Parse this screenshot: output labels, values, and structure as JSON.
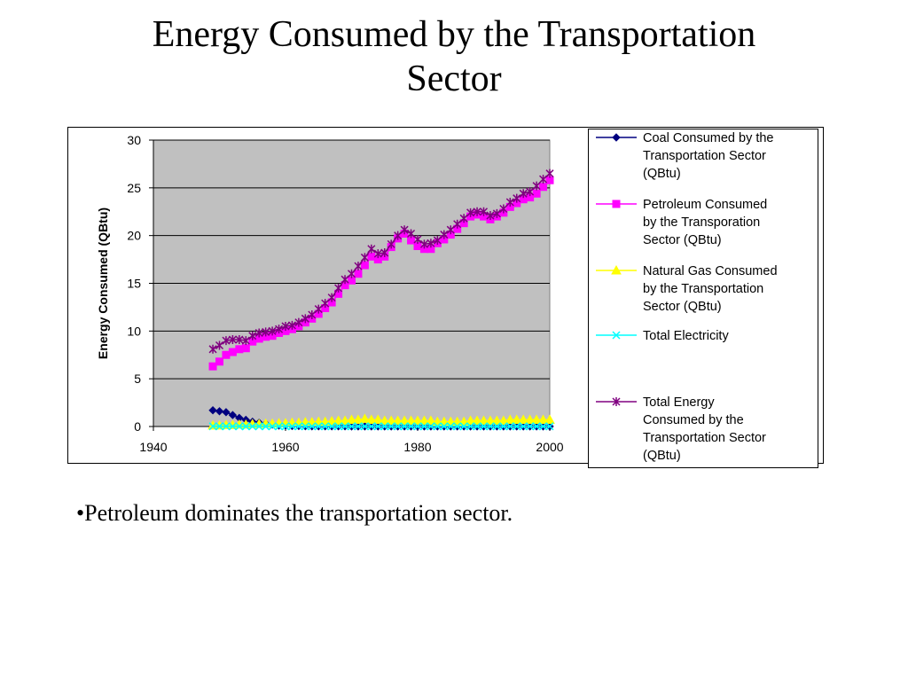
{
  "slide": {
    "title_line1": "Energy Consumed by the Transportation",
    "title_line2": "Sector",
    "bullet": "•Petroleum dominates the transportation sector."
  },
  "chart_data": {
    "type": "line",
    "title": "",
    "xlabel": "",
    "ylabel": "Energy Consumed (QBtu)",
    "xlim": [
      1940,
      2000
    ],
    "ylim": [
      0,
      30
    ],
    "x_ticks": [
      "1940",
      "1960",
      "1980",
      "2000"
    ],
    "y_ticks": [
      "0",
      "5",
      "10",
      "15",
      "20",
      "25",
      "30"
    ],
    "grid": "horizontal",
    "background": "#c0c0c0",
    "legend_position": "right",
    "x": [
      1949,
      1950,
      1951,
      1952,
      1953,
      1954,
      1955,
      1956,
      1957,
      1958,
      1959,
      1960,
      1961,
      1962,
      1963,
      1964,
      1965,
      1966,
      1967,
      1968,
      1969,
      1970,
      1971,
      1972,
      1973,
      1974,
      1975,
      1976,
      1977,
      1978,
      1979,
      1980,
      1981,
      1982,
      1983,
      1984,
      1985,
      1986,
      1987,
      1988,
      1989,
      1990,
      1991,
      1992,
      1993,
      1994,
      1995,
      1996,
      1997,
      1998,
      1999,
      2000
    ],
    "series": [
      {
        "name": "Coal Consumed by the Transportation Sector (QBtu)",
        "legend_lines": [
          "Coal Consumed by the",
          "Transportation Sector",
          "(QBtu)"
        ],
        "color": "#000080",
        "marker": "diamond",
        "values": [
          1.7,
          1.6,
          1.5,
          1.2,
          0.9,
          0.7,
          0.5,
          0.4,
          0.3,
          0.2,
          0.1,
          0.1,
          0.05,
          0.05,
          0.03,
          0.02,
          0.02,
          0.02,
          0.02,
          0.02,
          0.02,
          0.01,
          0.01,
          0.01,
          0.01,
          0.01,
          0.01,
          0.01,
          0.01,
          0.01,
          0.01,
          0.01,
          0.01,
          0.01,
          0.01,
          0.01,
          0.01,
          0.01,
          0.01,
          0.01,
          0.01,
          0.01,
          0.01,
          0.01,
          0.01,
          0.01,
          0.01,
          0.01,
          0.01,
          0.01,
          0.01,
          0.01
        ]
      },
      {
        "name": "Petroleum Consumed by the Transporation Sector (QBtu)",
        "legend_lines": [
          "Petroleum Consumed",
          "by the Transporation",
          "Sector (QBtu)"
        ],
        "color": "#ff00ff",
        "marker": "square",
        "values": [
          6.3,
          6.8,
          7.5,
          7.8,
          8.1,
          8.2,
          8.9,
          9.2,
          9.4,
          9.5,
          9.8,
          10.0,
          10.2,
          10.5,
          10.9,
          11.3,
          11.8,
          12.4,
          13.0,
          13.9,
          14.8,
          15.3,
          16.0,
          16.9,
          17.8,
          17.5,
          17.8,
          18.8,
          19.7,
          20.2,
          19.5,
          18.9,
          18.6,
          18.6,
          19.2,
          19.6,
          20.1,
          20.7,
          21.3,
          22.0,
          22.2,
          22.0,
          21.7,
          22.0,
          22.4,
          23.0,
          23.4,
          23.8,
          24.0,
          24.4,
          25.1,
          25.8
        ]
      },
      {
        "name": "Natural Gas Consumed by the Transportation Sector (QBtu)",
        "legend_lines": [
          "Natural Gas Consumed",
          "by the Transportation",
          "Sector (QBtu)"
        ],
        "color": "#ffff00",
        "marker": "triangle",
        "values": [
          0.1,
          0.1,
          0.15,
          0.15,
          0.2,
          0.2,
          0.25,
          0.25,
          0.3,
          0.3,
          0.35,
          0.35,
          0.4,
          0.4,
          0.45,
          0.45,
          0.5,
          0.5,
          0.55,
          0.6,
          0.6,
          0.7,
          0.7,
          0.8,
          0.7,
          0.7,
          0.6,
          0.6,
          0.6,
          0.6,
          0.6,
          0.6,
          0.6,
          0.6,
          0.5,
          0.5,
          0.5,
          0.5,
          0.5,
          0.6,
          0.6,
          0.6,
          0.6,
          0.6,
          0.6,
          0.7,
          0.7,
          0.7,
          0.7,
          0.7,
          0.7,
          0.7
        ]
      },
      {
        "name": "Total Electricity",
        "legend_lines": [
          "Total Electricity"
        ],
        "color": "#00ffff",
        "marker": "x",
        "values": [
          0.02,
          0.02,
          0.02,
          0.02,
          0.02,
          0.02,
          0.02,
          0.02,
          0.02,
          0.02,
          0.02,
          0.02,
          0.02,
          0.02,
          0.02,
          0.02,
          0.02,
          0.02,
          0.02,
          0.02,
          0.02,
          0.02,
          0.02,
          0.02,
          0.02,
          0.02,
          0.02,
          0.02,
          0.02,
          0.02,
          0.02,
          0.02,
          0.02,
          0.02,
          0.02,
          0.02,
          0.02,
          0.02,
          0.02,
          0.02,
          0.02,
          0.02,
          0.02,
          0.02,
          0.02,
          0.02,
          0.02,
          0.02,
          0.02,
          0.02,
          0.02,
          0.02
        ]
      },
      {
        "name": "Total Energy Consumed by the Transportation Sector (QBtu)",
        "legend_lines": [
          "Total Energy",
          "Consumed by the",
          "Transportation Sector",
          "(QBtu)"
        ],
        "color": "#800080",
        "marker": "star",
        "values": [
          8.1,
          8.5,
          9.0,
          9.1,
          9.1,
          9.0,
          9.5,
          9.8,
          9.9,
          10.0,
          10.2,
          10.5,
          10.6,
          10.9,
          11.3,
          11.7,
          12.3,
          12.9,
          13.5,
          14.5,
          15.4,
          16.0,
          16.8,
          17.7,
          18.6,
          18.1,
          18.2,
          19.1,
          20.0,
          20.6,
          20.2,
          19.6,
          19.1,
          19.2,
          19.5,
          20.1,
          20.6,
          21.2,
          21.8,
          22.4,
          22.5,
          22.5,
          22.1,
          22.3,
          22.8,
          23.5,
          23.9,
          24.4,
          24.6,
          25.2,
          25.9,
          26.5
        ]
      }
    ]
  }
}
